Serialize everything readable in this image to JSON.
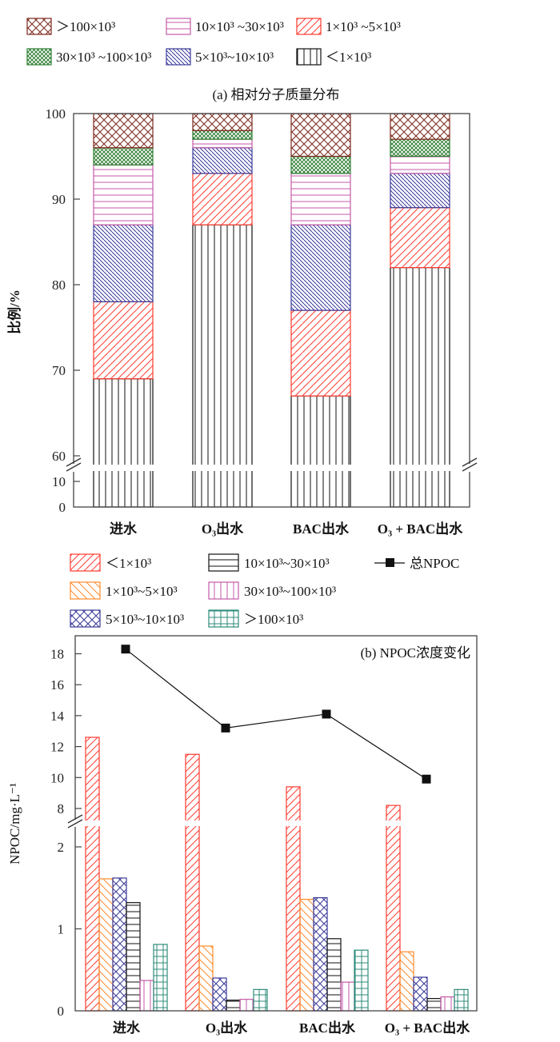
{
  "chart_data": [
    {
      "type": "bar",
      "stacked": true,
      "title": "(a) 相对分子质量分布",
      "ylabel": "比例/%",
      "xlabel": "",
      "categories": [
        "进水",
        "O₃出水",
        "BAC出水",
        "O₃ + BAC出水"
      ],
      "y_ticks": [
        "0",
        "10",
        "60",
        "70",
        "80",
        "90",
        "100"
      ],
      "y_tick_values": [
        0,
        10,
        60,
        70,
        80,
        90,
        100
      ],
      "ylim": [
        0,
        100
      ],
      "axis_break": [
        10,
        60
      ],
      "legend_placement": "top",
      "series": [
        {
          "name": "<1×10³",
          "legend": "＜1×10³",
          "values": [
            69,
            87,
            67,
            82
          ],
          "color": "#111111",
          "pattern": "vertical"
        },
        {
          "name": "1×10³ ~5×10³",
          "legend": "1×10³  ~5×10³",
          "values": [
            9,
            6,
            10,
            7
          ],
          "color": "#ff3b30",
          "pattern": "slash"
        },
        {
          "name": "5×10³~10×10³",
          "legend": "5×10³~10×10³",
          "values": [
            9,
            3,
            10,
            4
          ],
          "color": "#3b3b9a",
          "pattern": "backslash-dense"
        },
        {
          "name": "10×10³ ~30×10³",
          "legend": "10×10³ ~30×10³",
          "values": [
            7,
            1,
            6,
            2
          ],
          "color": "#c45aa8",
          "pattern": "horizontal"
        },
        {
          "name": "30×10³ ~100×10³",
          "legend": "30×10³ ~100×10³",
          "values": [
            2,
            1,
            2,
            2
          ],
          "color": "#2e7d32",
          "pattern": "crosshatch-dense"
        },
        {
          "name": ">100×10³",
          "legend": "＞100×10³",
          "values": [
            4,
            2,
            5,
            3
          ],
          "color": "#7b2a1e",
          "pattern": "crosshatch"
        }
      ],
      "legend_order": [
        5,
        3,
        1,
        4,
        2,
        0
      ]
    },
    {
      "type": "bar",
      "title": "(b) NPOC浓度变化",
      "ylabel": "NPOC/mg·L⁻¹",
      "xlabel": "",
      "categories": [
        "进水",
        "O₃出水",
        "BAC出水",
        "O₃ + BAC出水"
      ],
      "y_ticks": [
        "0",
        "1",
        "2",
        "8",
        "10",
        "12",
        "14",
        "16",
        "18"
      ],
      "y_tick_values": [
        0,
        1,
        2,
        8,
        10,
        12,
        14,
        16,
        18
      ],
      "ylim": [
        0,
        19
      ],
      "axis_break": [
        2.3,
        7.2
      ],
      "legend_placement": "top",
      "series": [
        {
          "name": "<1×10³",
          "legend": "＜1×10³",
          "values": [
            12.6,
            11.5,
            9.4,
            8.2
          ],
          "color": "#ff3b30",
          "pattern": "slash"
        },
        {
          "name": "1×10³~5×10³",
          "legend": "1×10³~5×10³",
          "values": [
            1.61,
            0.79,
            1.36,
            0.72
          ],
          "color": "#ff8a2a",
          "pattern": "backslash"
        },
        {
          "name": "5×10³~10×10³",
          "legend": "5×10³~10×10³",
          "values": [
            1.62,
            0.4,
            1.38,
            0.41
          ],
          "color": "#3b3b9a",
          "pattern": "crosshatch"
        },
        {
          "name": "10×10³~30×10³",
          "legend": "10×10³~30×10³",
          "values": [
            1.32,
            0.13,
            0.88,
            0.15
          ],
          "color": "#111111",
          "pattern": "horizontal"
        },
        {
          "name": "30×10³~100×10³",
          "legend": "30×10³~100×10³",
          "values": [
            0.37,
            0.14,
            0.35,
            0.17
          ],
          "color": "#c45aa8",
          "pattern": "vertical"
        },
        {
          "name": ">100×10³",
          "legend": "＞100×10³",
          "values": [
            0.81,
            0.26,
            0.74,
            0.26
          ],
          "color": "#2e8b7a",
          "pattern": "grid"
        }
      ],
      "line_series": {
        "name": "总NPOC",
        "legend": "总NPOC",
        "values": [
          18.3,
          13.2,
          14.1,
          9.9
        ],
        "color": "#111111",
        "marker": "square"
      },
      "legend_order": [
        0,
        3,
        "line",
        1,
        4,
        2,
        5
      ]
    }
  ]
}
